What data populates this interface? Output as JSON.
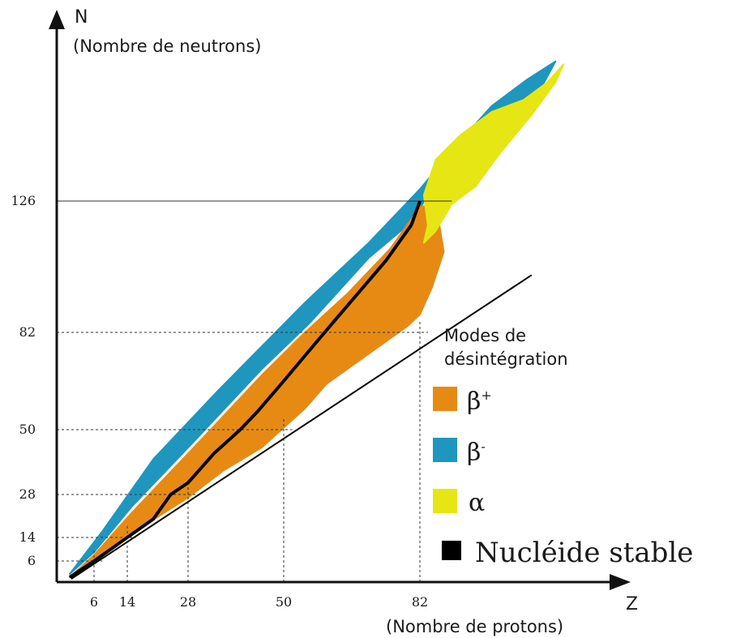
{
  "chart_data": {
    "type": "scatter",
    "title": "",
    "xaxis": {
      "letter": "Z",
      "label": "(Nombre de protons)",
      "ticks": [
        "6",
        "14",
        "28",
        "50",
        "82"
      ],
      "tick_values": [
        6,
        14,
        28,
        50,
        82
      ],
      "range": [
        0,
        120
      ]
    },
    "yaxis": {
      "letter": "N",
      "label": "(Nombre de neutrons)",
      "ticks": [
        "6",
        "14",
        "28",
        "50",
        "82",
        "126"
      ],
      "tick_values": [
        6,
        14,
        28,
        50,
        82,
        126
      ],
      "range": [
        0,
        180
      ]
    },
    "magic_numbers": [
      6,
      14,
      28,
      50,
      82,
      126
    ],
    "reference_line": {
      "equation": "N = Z",
      "z_range": [
        0,
        110
      ]
    },
    "legend": {
      "title_line1": "Modes de",
      "title_line2": "désintégration",
      "position": "right",
      "items": [
        {
          "key": "beta_plus",
          "symbol": "β",
          "superscript": "+",
          "color": "#E68A14"
        },
        {
          "key": "beta_minus",
          "symbol": "β",
          "superscript": "-",
          "color": "#1F96BE"
        },
        {
          "key": "alpha",
          "symbol": "α",
          "superscript": "",
          "color": "#E6E614"
        },
        {
          "key": "stable",
          "symbol": "Nucléide stable",
          "superscript": "",
          "color": "#000000"
        }
      ]
    },
    "regions": [
      {
        "mode": "beta_minus",
        "color": "#1F96BE",
        "boundary_zn": [
          [
            1,
            2
          ],
          [
            8,
            16
          ],
          [
            20,
            40
          ],
          [
            35,
            63
          ],
          [
            55,
            92
          ],
          [
            70,
            112
          ],
          [
            82,
            130
          ],
          [
            92,
            146
          ],
          [
            100,
            158
          ],
          [
            109,
            167
          ],
          [
            116,
            173
          ],
          [
            112,
            163
          ],
          [
            100,
            150
          ],
          [
            90,
            138
          ],
          [
            85,
            130
          ],
          [
            80,
            119
          ],
          [
            70,
            107
          ],
          [
            56,
            85
          ],
          [
            45,
            70
          ],
          [
            30,
            47
          ],
          [
            15,
            24
          ],
          [
            6,
            9
          ],
          [
            1,
            2
          ]
        ]
      },
      {
        "mode": "beta_plus",
        "color": "#E68A14",
        "boundary_zn": [
          [
            1,
            1
          ],
          [
            8,
            8
          ],
          [
            18,
            18
          ],
          [
            28,
            27
          ],
          [
            36,
            36
          ],
          [
            45,
            44
          ],
          [
            55,
            57
          ],
          [
            60,
            65
          ],
          [
            70,
            75
          ],
          [
            79,
            84
          ],
          [
            82,
            88
          ],
          [
            85,
            97
          ],
          [
            88,
            109
          ],
          [
            86,
            125
          ],
          [
            82,
            124
          ],
          [
            75,
            110
          ],
          [
            65,
            95
          ],
          [
            55,
            82
          ],
          [
            45,
            68
          ],
          [
            30,
            45
          ],
          [
            15,
            22
          ],
          [
            6,
            8
          ]
        ]
      },
      {
        "mode": "alpha",
        "color": "#E6E614",
        "boundary_zn": [
          [
            83,
            112
          ],
          [
            86,
            116
          ],
          [
            90,
            125
          ],
          [
            96,
            131
          ],
          [
            102,
            142
          ],
          [
            110,
            155
          ],
          [
            116,
            166
          ],
          [
            118,
            172
          ],
          [
            114,
            166
          ],
          [
            108,
            160
          ],
          [
            100,
            156
          ],
          [
            92,
            148
          ],
          [
            86,
            140
          ],
          [
            83,
            128
          ],
          [
            84,
            118
          ]
        ]
      }
    ],
    "stable_line_zn": [
      [
        1,
        1
      ],
      [
        2,
        2
      ],
      [
        6,
        6
      ],
      [
        8,
        8
      ],
      [
        14,
        14
      ],
      [
        20,
        20
      ],
      [
        24,
        28
      ],
      [
        28,
        32
      ],
      [
        34,
        42
      ],
      [
        40,
        50
      ],
      [
        44,
        56
      ],
      [
        50,
        66
      ],
      [
        56,
        76
      ],
      [
        62,
        86
      ],
      [
        68,
        96
      ],
      [
        74,
        106
      ],
      [
        80,
        118
      ],
      [
        82,
        126
      ]
    ]
  }
}
